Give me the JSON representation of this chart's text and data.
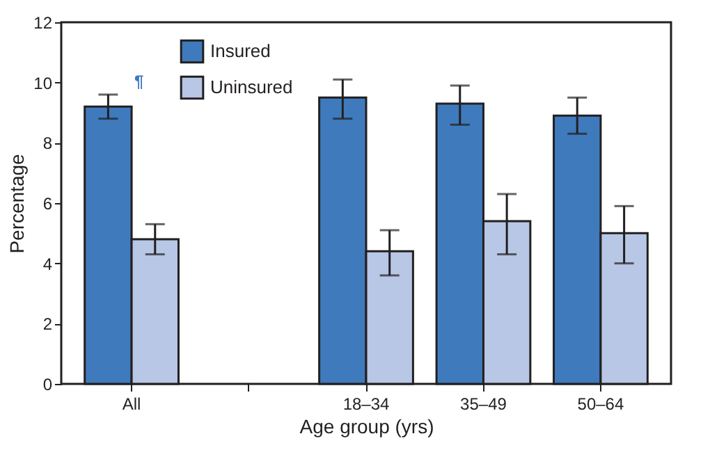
{
  "chart_data": {
    "type": "bar",
    "xlabel": "Age group (yrs)",
    "ylabel": "Percentage",
    "categories": [
      "All",
      null,
      "18–34",
      "35–49",
      "50–64"
    ],
    "series": [
      {
        "name": "Insured",
        "color": "#3f7abd",
        "values": [
          9.2,
          null,
          9.5,
          9.3,
          8.9
        ],
        "errors": [
          [
            8.8,
            9.6
          ],
          null,
          [
            8.8,
            10.1
          ],
          [
            8.6,
            9.9
          ],
          [
            8.3,
            9.5
          ]
        ]
      },
      {
        "name": "Uninsured",
        "color": "#b8c7e6",
        "values": [
          4.8,
          null,
          4.4,
          5.4,
          5.0
        ],
        "errors": [
          [
            4.3,
            5.3
          ],
          null,
          [
            3.6,
            5.1
          ],
          [
            4.3,
            6.3
          ],
          [
            4.0,
            5.9
          ]
        ]
      }
    ],
    "ylim": [
      0,
      12
    ],
    "yticks": [
      0,
      2,
      4,
      6,
      8,
      10,
      12
    ],
    "grid": false,
    "legend": "top left",
    "annotations": [
      {
        "text": "¶",
        "x": "All",
        "y": 9.2
      }
    ]
  }
}
